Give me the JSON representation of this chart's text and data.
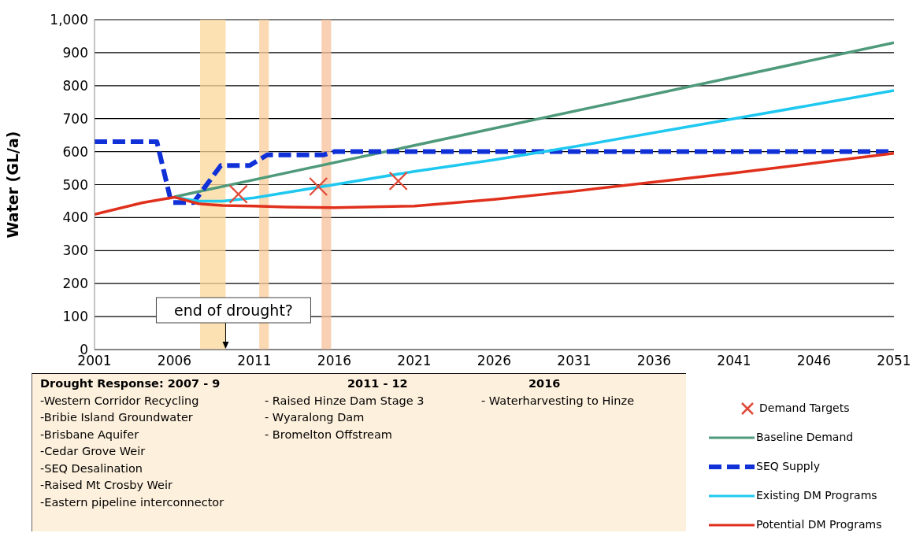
{
  "chart_data": {
    "type": "line",
    "ylabel": "Water (GL/a)",
    "xlim": [
      2001,
      2051
    ],
    "xticks": [
      2001,
      2006,
      2011,
      2016,
      2021,
      2026,
      2031,
      2036,
      2041,
      2046,
      2051
    ],
    "ylim": [
      0,
      1000
    ],
    "yticks": [
      0,
      100,
      200,
      300,
      400,
      500,
      600,
      700,
      800,
      900,
      {
        "value": 1000,
        "label": "1,000"
      }
    ],
    "grid": "y",
    "legend": "bottom right",
    "series": [
      {
        "name": "Demand Targets",
        "type": "scatter",
        "marker": "cross",
        "color": "#e04a3a",
        "x": [
          2010,
          2015,
          2020
        ],
        "values": [
          471,
          494,
          511
        ]
      },
      {
        "name": "Baseline Demand",
        "color": "#4e9a7a",
        "x": [
          2006,
          2051
        ],
        "values": [
          463,
          930
        ]
      },
      {
        "name": "SEQ Supply",
        "color": "#1030d8",
        "line_style": "dashed",
        "x": [
          2001,
          2004.9,
          2005.8,
          2007.2,
          2008.9,
          2010.7,
          2011.8,
          2015.3,
          2016,
          2051
        ],
        "values": [
          630,
          630,
          446,
          446,
          558,
          558,
          590,
          590,
          600,
          600
        ]
      },
      {
        "name": "Existing DM Programs",
        "color": "#1ec8f0",
        "x": [
          2006,
          2007.5,
          2009,
          2011,
          2016,
          2021,
          2026,
          2031,
          2041,
          2051
        ],
        "values": [
          462,
          450,
          450,
          460,
          500,
          540,
          575,
          615,
          700,
          785
        ]
      },
      {
        "name": "Potential DM Programs",
        "color": "#e0301c",
        "x": [
          2001,
          2004,
          2006,
          2007.5,
          2009,
          2011,
          2013,
          2016,
          2021,
          2026,
          2031,
          2036,
          2041,
          2046,
          2051
        ],
        "values": [
          410,
          445,
          462,
          442,
          437,
          435,
          432,
          430,
          435,
          455,
          480,
          508,
          535,
          565,
          595
        ]
      }
    ],
    "bands": [
      {
        "axis": "x",
        "from": 2007.6,
        "to": 2009.2,
        "color": "#fbd89a"
      },
      {
        "axis": "x",
        "from": 2011.3,
        "to": 2011.9,
        "color": "#f9cc9a"
      },
      {
        "axis": "x",
        "from": 2015.2,
        "to": 2015.8,
        "color": "#f7c09a"
      }
    ],
    "annotations": [
      {
        "text": "end of drought?",
        "x": 2009.2,
        "y": 0
      },
      "Drought Response: 2007 - 9",
      "-Western Corridor Recycling",
      "-Bribie Island Groundwater",
      "-Brisbane Aquifer",
      "-Cedar Grove Weir",
      "-SEQ Desalination",
      "-Raised Mt Crosby Weir",
      "-Eastern pipeline interconnector",
      "2011 - 12",
      "- Raised Hinze Dam Stage 3",
      "- Wyaralong Dam",
      "- Bromelton Offstream",
      "2016",
      "- Waterharvesting to Hinze"
    ]
  }
}
